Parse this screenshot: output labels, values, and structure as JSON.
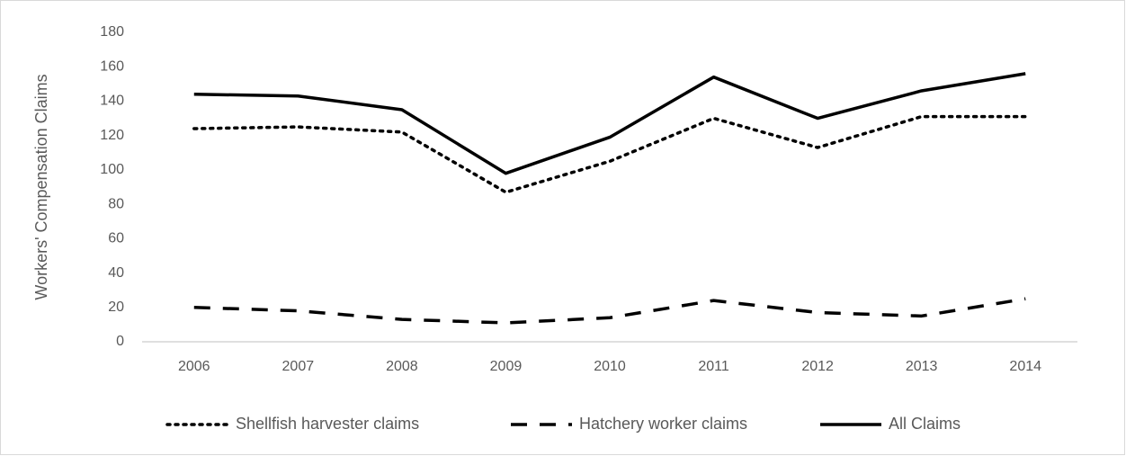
{
  "chart_data": {
    "type": "line",
    "y_label": "Workers' Compensation Claims",
    "categories": [
      "2006",
      "2007",
      "2008",
      "2009",
      "2010",
      "2011",
      "2012",
      "2013",
      "2014"
    ],
    "series": [
      {
        "name": "Shellfish harvester claims",
        "color": "#000000",
        "dash": "dotted",
        "values": [
          124,
          125,
          122,
          87,
          105,
          130,
          113,
          131,
          131
        ]
      },
      {
        "name": "Hatchery worker claims",
        "color": "#000000",
        "dash": "dashed",
        "values": [
          20,
          18,
          13,
          11,
          14,
          24,
          17,
          15,
          25
        ]
      },
      {
        "name": "All Claims",
        "color": "#000000",
        "dash": "solid",
        "values": [
          144,
          143,
          135,
          98,
          119,
          154,
          130,
          146,
          156
        ]
      }
    ],
    "ylim": [
      0,
      180
    ],
    "yticks": [
      0,
      20,
      40,
      60,
      80,
      100,
      120,
      140,
      160,
      180
    ],
    "grid": false,
    "legend": "bottom"
  }
}
